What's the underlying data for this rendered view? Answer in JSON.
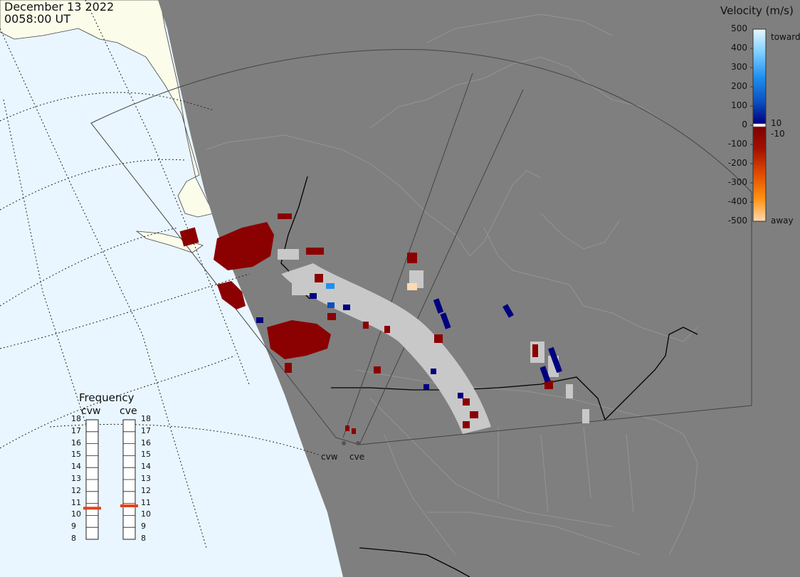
{
  "header": {
    "date": "December 13 2022",
    "time": "0058:00 UT"
  },
  "velocity_scale": {
    "title": "Velocity (m/s)",
    "ticks": [
      "500",
      "400",
      "300",
      "200",
      "100",
      "0",
      "-100",
      "-200",
      "-300",
      "-400",
      "-500"
    ],
    "toward_label": "toward",
    "away_label": "away",
    "plus_threshold": "10",
    "minus_threshold": "-10"
  },
  "frequency_panel": {
    "title": "Frequency",
    "radars": [
      "cvw",
      "cve"
    ],
    "scale": [
      "18",
      "17",
      "16",
      "15",
      "14",
      "13",
      "12",
      "11",
      "10",
      "9",
      "8"
    ],
    "values_mhz": [
      10.6,
      10.8
    ]
  },
  "sites": {
    "west": "cvw",
    "east": "cve"
  },
  "colors": {
    "ocean": "#e9f6ff",
    "land_daylight": "#fcfcea",
    "night_shade": "#7f7f7f",
    "ground_scatter": "#c8c8c8",
    "velocity_away_strong": "#8b0000",
    "velocity_toward_strong": "#00007f",
    "frequency_marker": "#e0441c"
  }
}
